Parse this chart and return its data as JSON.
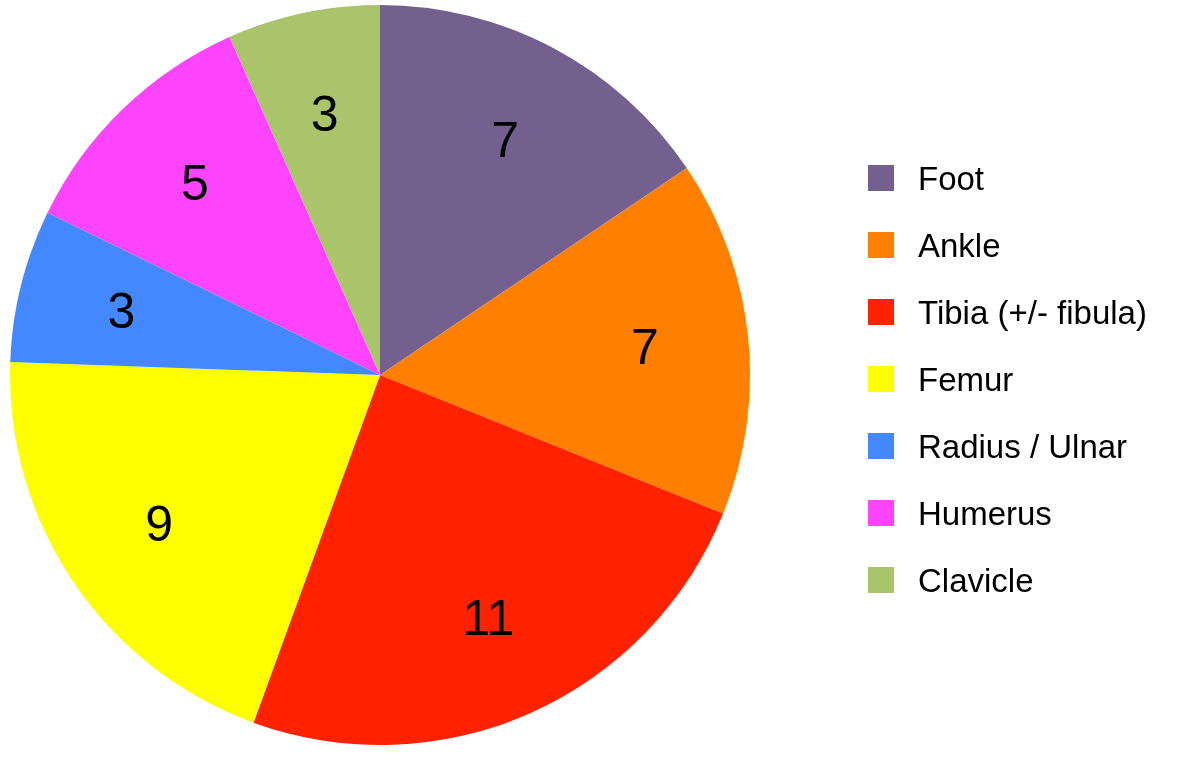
{
  "chart_data": {
    "type": "pie",
    "categories": [
      "Foot",
      "Ankle",
      "Tibia (+/- fibula)",
      "Femur",
      "Radius / Ulnar",
      "Humerus",
      "Clavicle"
    ],
    "values": [
      7,
      7,
      11,
      9,
      3,
      5,
      3
    ],
    "colors": [
      "#74608f",
      "#ff8000",
      "#ff2200",
      "#ffff00",
      "#4488ff",
      "#ff44ff",
      "#a9c46a"
    ],
    "data_labels": true,
    "legend": "right"
  }
}
